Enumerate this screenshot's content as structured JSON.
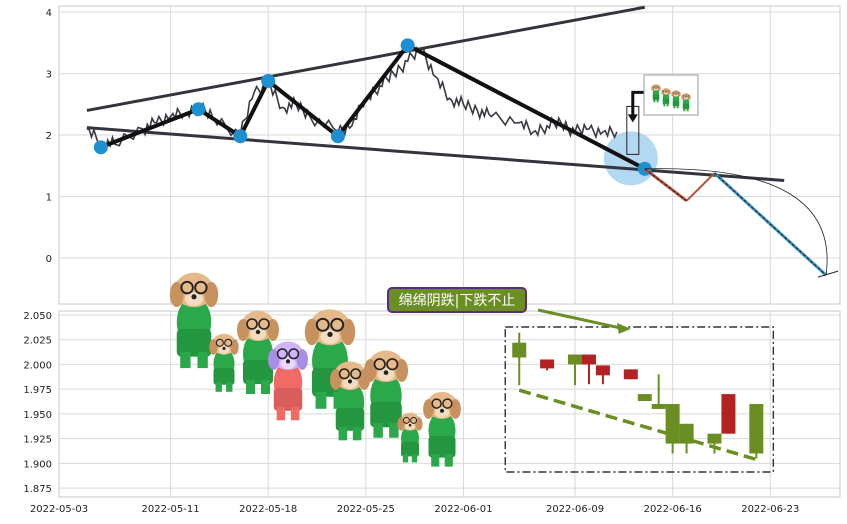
{
  "colors": {
    "grid": "#d9d9d9",
    "frame": "#c8c8c8",
    "price_line": "#3a3a44",
    "trend_line": "#33343c",
    "zigzag": "#111111",
    "pivot": "#1e8fd0",
    "highlight": "#9fd0ee",
    "up_candle": "#6b8e23",
    "down_candle": "#b22222",
    "dash_trend": "#6b8e23",
    "label_bg": "#6b8e23",
    "label_border": "#5a2d82",
    "label_text": "#ffffff",
    "proj_down": "#b5533a",
    "proj_fall": "#3b8fc0"
  },
  "chart_data": [
    {
      "type": "line",
      "panel": "top",
      "ylim": [
        -0.75,
        4.1
      ],
      "yticks": [
        "0",
        "1",
        "2",
        "3",
        "4"
      ],
      "xlim": [
        "2022-05-03",
        "2022-06-28"
      ],
      "price_series": {
        "x": [
          "2022-05-05",
          "2022-05-06",
          "2022-05-07",
          "2022-05-09",
          "2022-05-10",
          "2022-05-11",
          "2022-05-12",
          "2022-05-13",
          "2022-05-14",
          "2022-05-16",
          "2022-05-17",
          "2022-05-18",
          "2022-05-19",
          "2022-05-20",
          "2022-05-21",
          "2022-05-23",
          "2022-05-24",
          "2022-05-25",
          "2022-05-26",
          "2022-05-27",
          "2022-05-28",
          "2022-05-29",
          "2022-05-30",
          "2022-05-31",
          "2022-06-01",
          "2022-06-02",
          "2022-06-03",
          "2022-06-05",
          "2022-06-06",
          "2022-06-07",
          "2022-06-08",
          "2022-06-09",
          "2022-06-10",
          "2022-06-11",
          "2022-06-12"
        ],
        "y": [
          2.1,
          1.9,
          1.85,
          2.1,
          2.2,
          2.3,
          2.35,
          2.45,
          2.3,
          2.0,
          2.7,
          2.85,
          2.45,
          2.5,
          2.3,
          2.05,
          2.15,
          2.6,
          2.8,
          3.0,
          3.2,
          3.4,
          2.95,
          2.6,
          2.5,
          2.4,
          2.3,
          2.2,
          2.05,
          2.15,
          2.2,
          2.05,
          2.1,
          2.05,
          2.05
        ]
      },
      "zigzag": {
        "x": [
          "2022-05-06",
          "2022-05-13",
          "2022-05-16",
          "2022-05-18",
          "2022-05-23",
          "2022-05-28",
          "2022-06-14"
        ],
        "y": [
          1.8,
          2.42,
          1.98,
          2.88,
          1.98,
          3.46,
          1.45
        ]
      },
      "upper_trend": {
        "x": [
          "2022-05-05",
          "2022-06-14"
        ],
        "y": [
          2.4,
          4.08
        ]
      },
      "lower_trend": {
        "x": [
          "2022-05-05",
          "2022-06-24"
        ],
        "y": [
          2.12,
          1.26
        ]
      },
      "projection": {
        "x": [
          "2022-06-14",
          "2022-06-17",
          "2022-06-19",
          "2022-06-27"
        ],
        "y": [
          1.45,
          0.93,
          1.38,
          -0.28
        ]
      },
      "highlight": {
        "x": "2022-06-13",
        "y": 1.62
      }
    },
    {
      "type": "candlestick",
      "panel": "bottom",
      "ylim": [
        1.866,
        2.054
      ],
      "yticks": [
        "1.875",
        "1.900",
        "1.925",
        "1.950",
        "1.975",
        "2.000",
        "2.025",
        "2.050"
      ],
      "xticks": [
        "2022-05-03",
        "2022-05-11",
        "2022-05-18",
        "2022-05-25",
        "2022-06-01",
        "2022-06-09",
        "2022-06-16",
        "2022-06-23"
      ],
      "candles": [
        {
          "date": "2022-06-05",
          "open": 2.022,
          "close": 2.007,
          "high": 2.032,
          "low": 1.979,
          "dir": "up"
        },
        {
          "date": "2022-06-07",
          "open": 2.005,
          "close": 1.996,
          "high": 2.005,
          "low": 1.994,
          "dir": "down"
        },
        {
          "date": "2022-06-09",
          "open": 2.01,
          "close": 2.0,
          "high": 2.01,
          "low": 1.979,
          "dir": "up"
        },
        {
          "date": "2022-06-10",
          "open": 2.01,
          "close": 2.0,
          "high": 2.01,
          "low": 1.98,
          "dir": "down"
        },
        {
          "date": "2022-06-11",
          "open": 1.999,
          "close": 1.989,
          "high": 1.999,
          "low": 1.98,
          "dir": "down"
        },
        {
          "date": "2022-06-13",
          "open": 1.995,
          "close": 1.985,
          "high": 1.995,
          "low": 1.985,
          "dir": "down"
        },
        {
          "date": "2022-06-14",
          "open": 1.97,
          "close": 1.963,
          "high": 1.97,
          "low": 1.963,
          "dir": "up"
        },
        {
          "date": "2022-06-15",
          "open": 1.96,
          "close": 1.955,
          "high": 1.99,
          "low": 1.955,
          "dir": "up"
        },
        {
          "date": "2022-06-16",
          "open": 1.96,
          "close": 1.92,
          "high": 1.96,
          "low": 1.91,
          "dir": "up"
        },
        {
          "date": "2022-06-17",
          "open": 1.94,
          "close": 1.92,
          "high": 1.94,
          "low": 1.91,
          "dir": "up"
        },
        {
          "date": "2022-06-19",
          "open": 1.93,
          "close": 1.92,
          "high": 1.93,
          "low": 1.91,
          "dir": "up"
        },
        {
          "date": "2022-06-20",
          "open": 1.97,
          "close": 1.93,
          "high": 1.97,
          "low": 1.93,
          "dir": "down"
        },
        {
          "date": "2022-06-22",
          "open": 1.96,
          "close": 1.91,
          "high": 1.96,
          "low": 1.905,
          "dir": "up"
        }
      ],
      "dashed_trend": {
        "x": [
          "2022-06-05",
          "2022-06-22"
        ],
        "y": [
          1.974,
          1.904
        ]
      },
      "annotation": {
        "text": "绵绵阴跌|下跌不止",
        "arrow_to": {
          "x": "2022-06-13",
          "y": 2.046
        }
      }
    }
  ]
}
